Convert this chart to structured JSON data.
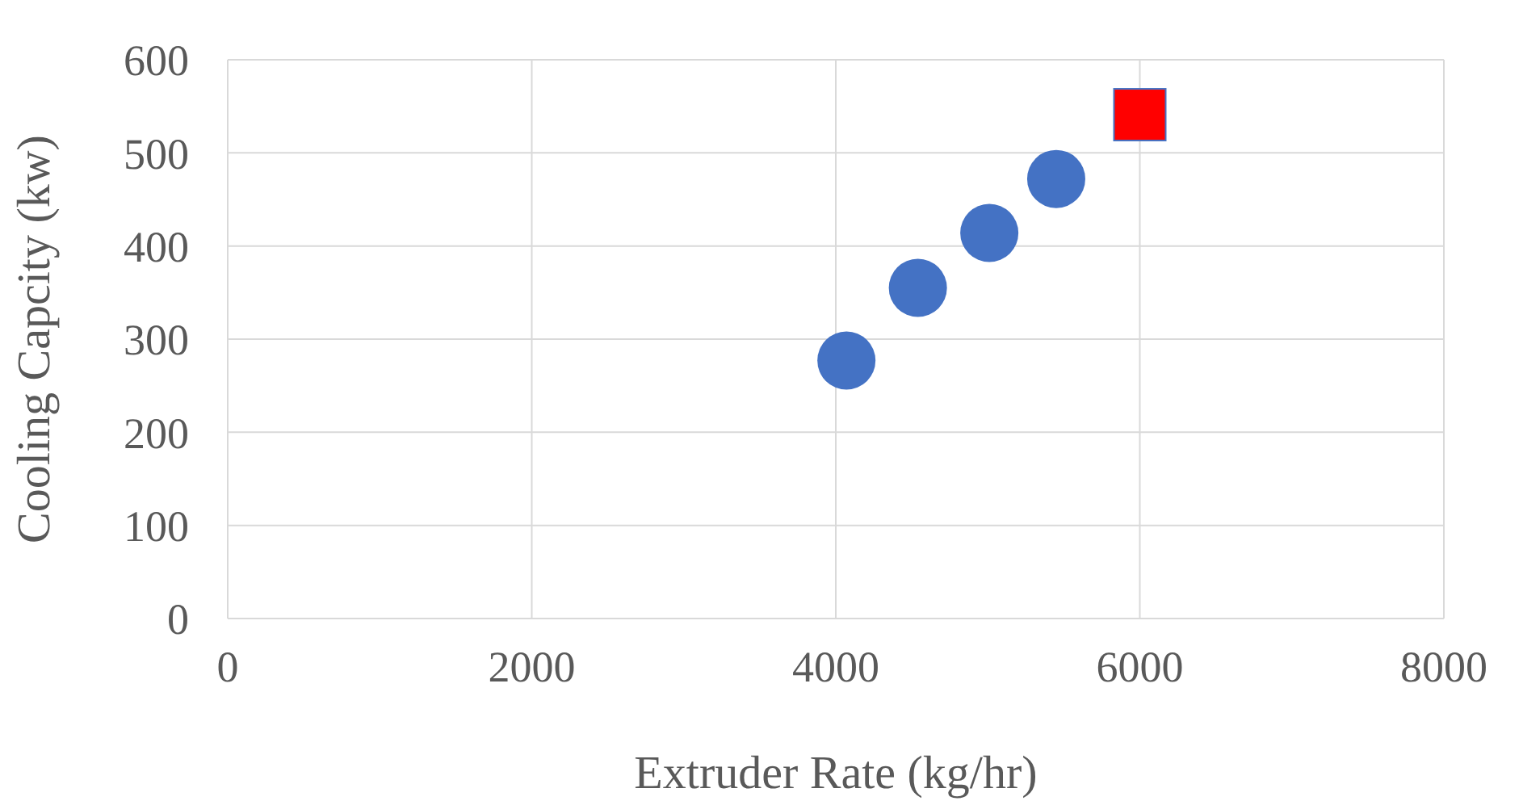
{
  "chart_data": {
    "type": "scatter",
    "xlabel": "Extruder Rate (kg/hr)",
    "ylabel": "Cooling Capcity (kw)",
    "xlim": [
      0,
      8000
    ],
    "xticks": [
      0,
      2000,
      4000,
      6000,
      8000
    ],
    "ylim": [
      0,
      600
    ],
    "yticks": [
      0,
      100,
      200,
      300,
      400,
      500,
      600
    ],
    "grid": true,
    "series": [
      {
        "color": "#4472c4",
        "marker": "circle",
        "x": [
          4070,
          4540,
          5010,
          5450
        ],
        "values": [
          277,
          355,
          414,
          472
        ]
      },
      {
        "color": "#ff0000",
        "marker": "square",
        "x": [
          6000
        ],
        "values": [
          541
        ]
      }
    ]
  }
}
